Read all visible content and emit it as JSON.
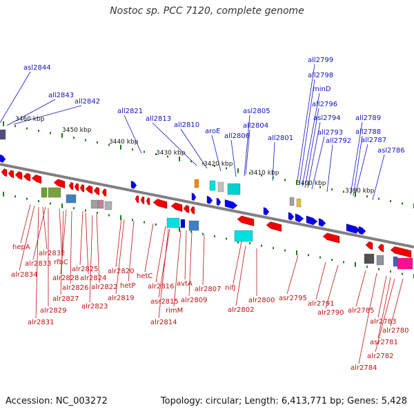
{
  "title": "Nostoc sp. PCC 7120, complete genome",
  "footer": {
    "accession": "Accession: NC_003272",
    "summary": "Topology: circular; Length: 6,413,771 bp; Genes: 5,428"
  },
  "colors": {
    "backbone": "#808080",
    "forward_gene": "#0000ee",
    "reverse_gene": "#ee0000",
    "top_label": "#1010c0",
    "bottom_label": "#c01010",
    "tick": "#1a7a1a"
  },
  "kbp_labels": [
    "3460 kbp",
    "3450 kbp",
    "3440 kbp",
    "3430 kbp",
    "3420 kbp",
    "3410 kbp",
    "3400 kbp",
    "3390 kbp"
  ],
  "top_labels": [
    "asl2844",
    "all2843",
    "all2842",
    "all2821",
    "all2813",
    "all2810",
    "aroE",
    "asl2805",
    "all2804",
    "all2806",
    "all2801",
    "all2799",
    "all2798",
    "minD",
    "all2796",
    "asl2794",
    "all2793",
    "all2792",
    "all2789",
    "all2788",
    "all2787",
    "asl2786"
  ],
  "bottom_labels": [
    "hepA",
    "alr2832",
    "alr2833",
    "rfbC",
    "alr2834",
    "alr2825",
    "alr2828",
    "alr2824",
    "alr2826",
    "alr2822",
    "alr2827",
    "alr2823",
    "alr2829",
    "alr2831",
    "alr2820",
    "hetP",
    "alr2819",
    "hetC",
    "alr2816",
    "avtA",
    "asr2815",
    "alr2809",
    "rimM",
    "alr2814",
    "alr2807",
    "nifJ",
    "alr2800",
    "alr2802",
    "asr2795",
    "alr2791",
    "alr2790",
    "alr2785",
    "alr2783",
    "alr2780",
    "asr2781",
    "alr2782",
    "alr2784"
  ]
}
